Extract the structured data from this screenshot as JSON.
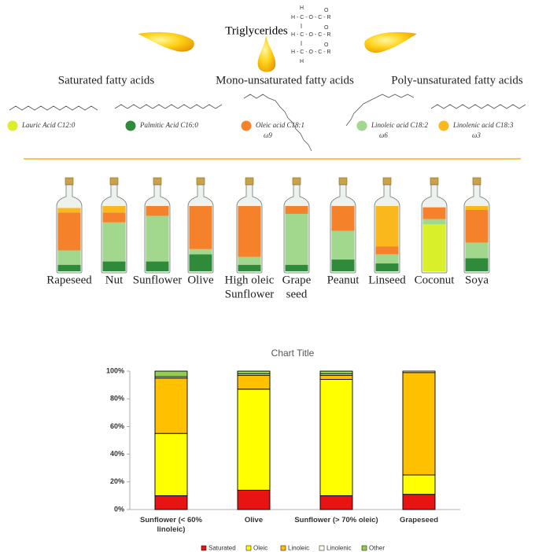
{
  "infographic": {
    "title": "Triglycerides",
    "formula": [
      "H",
      "H - C - O - C - R",
      "H - C - O - C - R",
      "H - C - O - C - R",
      "H"
    ],
    "carbonyl": "O",
    "groups": [
      "Saturated fatty acids",
      "Mono-unsaturated fatty acids",
      "Poly-unsaturated fatty acids"
    ],
    "acids": [
      {
        "name": "Lauric Acid C12:0",
        "color": "#d8ef2a"
      },
      {
        "name": "Palmitic Acid C16:0",
        "color": "#2f8a3a"
      },
      {
        "name": "Oleic acid C18:1",
        "omega": "ω9",
        "color": "#f5822a"
      },
      {
        "name": "Linoleic acid C18:2",
        "omega": "ω6",
        "color": "#a2d88e"
      },
      {
        "name": "Linolenic acid C18:3",
        "omega": "ω3",
        "color": "#fbb81c"
      }
    ],
    "bottles": [
      {
        "name": [
          "Rapeseed"
        ],
        "values": [
          0,
          10,
          58,
          22,
          7
        ]
      },
      {
        "name": [
          "Nut"
        ],
        "values": [
          0,
          15,
          15,
          60,
          10
        ]
      },
      {
        "name": [
          "Sunflower"
        ],
        "values": [
          0,
          15,
          15,
          70,
          0
        ]
      },
      {
        "name": [
          "Olive"
        ],
        "values": [
          0,
          26,
          66,
          8,
          0
        ]
      },
      {
        "name": [
          "High oleic",
          "Sunflower"
        ],
        "values": [
          0,
          10,
          78,
          12,
          0
        ]
      },
      {
        "name": [
          "Grape",
          "seed"
        ],
        "values": [
          0,
          10,
          12,
          78,
          0
        ]
      },
      {
        "name": [
          "Peanut"
        ],
        "values": [
          0,
          18,
          38,
          44,
          0
        ]
      },
      {
        "name": [
          "Linseed"
        ],
        "values": [
          0,
          12,
          12,
          14,
          62
        ]
      },
      {
        "name": [
          "Coconut"
        ],
        "values": [
          72,
          0,
          18,
          8,
          0
        ]
      },
      {
        "name": [
          "Soya"
        ],
        "values": [
          0,
          20,
          50,
          24,
          6
        ]
      }
    ]
  },
  "chart_data": {
    "type": "stacked_bar",
    "title": "Chart Title",
    "categories": [
      "Sunflower (< 60% linoleic)",
      "Olive",
      "Sunflower (> 70% oleic)",
      "Grapeseed"
    ],
    "series": [
      {
        "name": "Saturated",
        "color": "#e81414",
        "values": [
          10,
          14,
          10,
          11
        ]
      },
      {
        "name": "Oleic",
        "color": "#ffff00",
        "values": [
          45,
          73,
          84,
          14
        ]
      },
      {
        "name": "Linoleic",
        "color": "#ffc000",
        "values": [
          40,
          10,
          3,
          74
        ]
      },
      {
        "name": "Linolenic",
        "color": "#fffff0",
        "values": [
          1,
          1,
          1,
          1
        ]
      },
      {
        "name": "Other",
        "color": "#92d050",
        "values": [
          4,
          2,
          2,
          0
        ]
      }
    ],
    "ylim": [
      0,
      100
    ],
    "yticks": [
      {
        "value": 0,
        "label": "0%"
      },
      {
        "value": 20,
        "label": "20%"
      },
      {
        "value": 40,
        "label": "40%"
      },
      {
        "value": 60,
        "label": "60%"
      },
      {
        "value": 80,
        "label": "80%"
      },
      {
        "value": 100,
        "label": "100%"
      }
    ],
    "legend": "bottom"
  }
}
